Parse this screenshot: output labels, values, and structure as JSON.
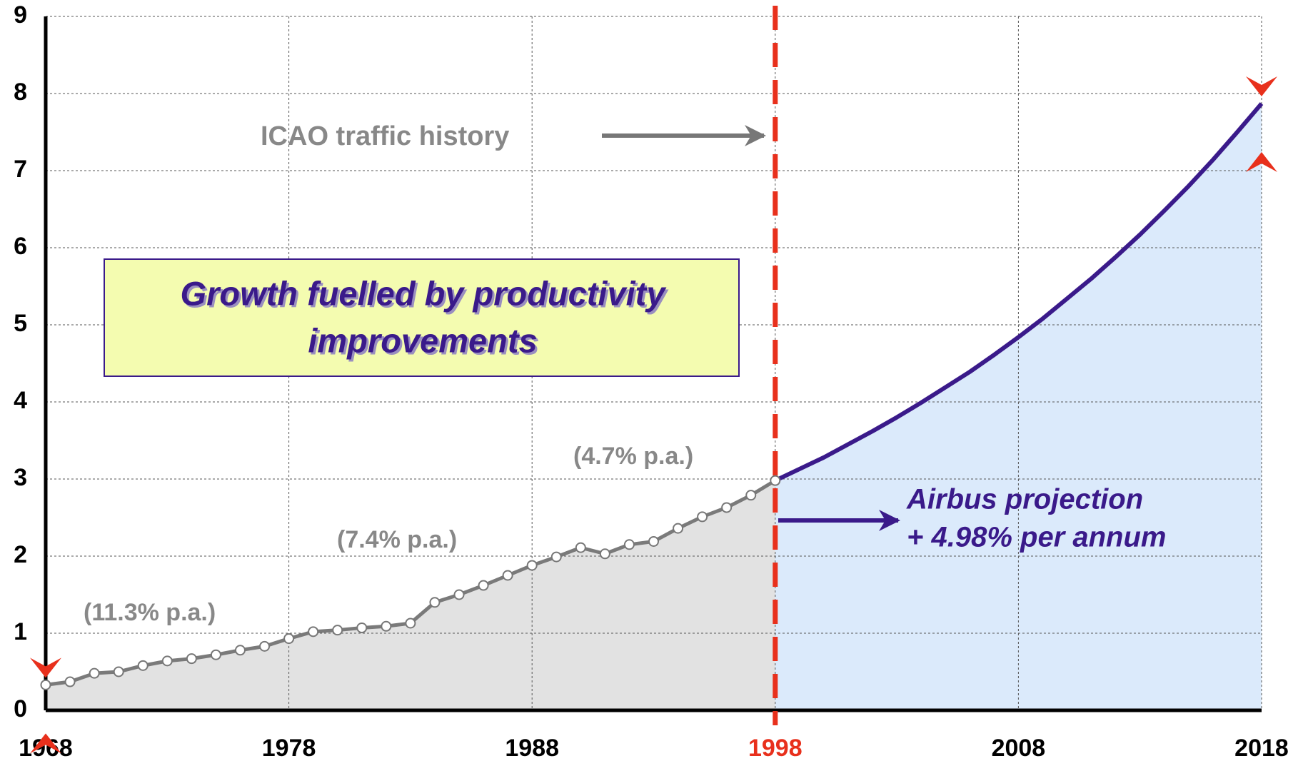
{
  "chart_data": {
    "type": "line",
    "xlim": [
      1968,
      2018
    ],
    "ylim": [
      0,
      9
    ],
    "xticks": [
      1968,
      1978,
      1988,
      1998,
      2008,
      2018
    ],
    "xtick_colors": [
      "#000000",
      "#000000",
      "#000000",
      "#e8301c",
      "#000000",
      "#000000"
    ],
    "yticks": [
      0,
      1,
      2,
      3,
      4,
      5,
      6,
      7,
      8,
      9
    ],
    "grid": true,
    "vline": {
      "x": 1998,
      "color": "#e8301c"
    },
    "series": [
      {
        "color": "#7a7a7a",
        "fill": "#e2e2e2",
        "markers": true,
        "x": [
          1968,
          1969,
          1970,
          1971,
          1972,
          1973,
          1974,
          1975,
          1976,
          1977,
          1978,
          1979,
          1980,
          1981,
          1982,
          1983,
          1984,
          1985,
          1986,
          1987,
          1988,
          1989,
          1990,
          1991,
          1992,
          1993,
          1994,
          1995,
          1996,
          1997,
          1998
        ],
        "values": [
          0.33,
          0.37,
          0.48,
          0.5,
          0.58,
          0.64,
          0.67,
          0.72,
          0.78,
          0.83,
          0.93,
          1.02,
          1.04,
          1.07,
          1.09,
          1.13,
          1.4,
          1.5,
          1.62,
          1.75,
          1.88,
          1.99,
          2.11,
          2.03,
          2.15,
          2.19,
          2.36,
          2.51,
          2.63,
          2.79,
          2.98
        ]
      },
      {
        "color": "#3a1a8a",
        "fill": "#dbeafb",
        "markers": false,
        "x": [
          1998,
          1999,
          2000,
          2001,
          2002,
          2003,
          2004,
          2005,
          2006,
          2007,
          2008,
          2009,
          2010,
          2011,
          2012,
          2013,
          2014,
          2015,
          2016,
          2017,
          2018
        ],
        "values": [
          2.98,
          3.13,
          3.28,
          3.45,
          3.62,
          3.8,
          3.99,
          4.19,
          4.39,
          4.61,
          4.84,
          5.08,
          5.34,
          5.6,
          5.88,
          6.17,
          6.48,
          6.8,
          7.14,
          7.5,
          7.87
        ]
      }
    ],
    "box_lines": [
      "Growth fuelled by productivity",
      "improvements"
    ],
    "annotations": [
      "ICAO traffic history",
      "(11.3% p.a.)",
      "(7.4% p.a.)",
      "(4.7% p.a.)",
      "Airbus projection",
      "+ 4.98% per annum"
    ]
  }
}
